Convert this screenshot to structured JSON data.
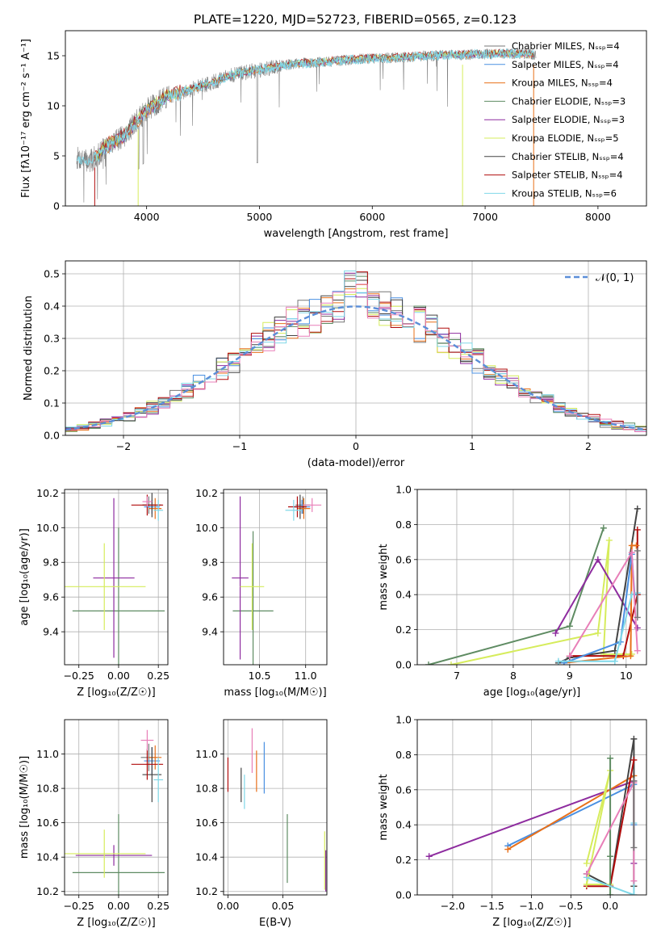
{
  "figure": {
    "title": "PLATE=1220, MJD=52723, FIBERID=0565, z=0.123"
  },
  "colors": {
    "chabrier_miles": "#777777",
    "salpeter_miles": "#4a90e2",
    "kroupa_miles": "#e8701a",
    "chabrier_elodie": "#5e8b62",
    "salpeter_elodie": "#8e2c9f",
    "kroupa_elodie": "#d6ec5c",
    "chabrier_stelib": "#444444",
    "salpeter_stelib": "#b00c0c",
    "kroupa_stelib": "#80d8e8",
    "pink": "#e87fb8",
    "normal_fit": "#5b8ed8"
  },
  "chart_data": [
    {
      "id": "spectrum",
      "type": "line",
      "xlabel": "wavelength [Angstrom, rest frame]",
      "ylabel": "Flux [fλ10⁻¹⁷ erg cm⁻² s⁻¹ A⁻¹]",
      "xlim": [
        3280,
        8430
      ],
      "ylim": [
        0,
        17.5
      ],
      "xticks": [
        4000,
        5000,
        6000,
        7000,
        8000
      ],
      "yticks": [
        0,
        5,
        10,
        15
      ],
      "legend_position": "top-right",
      "legend": [
        "Chabrier MILES, Nₛₛₚ=4",
        "Salpeter MILES, Nₛₛₚ=4",
        "Kroupa MILES, Nₛₛₚ=4",
        "Chabrier ELODIE, Nₛₛₚ=3",
        "Salpeter ELODIE, Nₛₛₚ=3",
        "Kroupa ELODIE, Nₛₛₚ=5",
        "Chabrier STELIB, Nₛₛₚ=4",
        "Salpeter STELIB, Nₛₛₚ=4",
        "Kroupa STELIB, Nₛₛₚ=6"
      ],
      "legend_colors": [
        "chabrier_miles",
        "salpeter_miles",
        "kroupa_miles",
        "chabrier_elodie",
        "salpeter_elodie",
        "kroupa_elodie",
        "chabrier_stelib",
        "salpeter_stelib",
        "kroupa_stelib"
      ],
      "continuum_wavelength": [
        3380,
        3500,
        3650,
        3800,
        4000,
        4200,
        4500,
        4800,
        5000,
        5300,
        5600,
        5900,
        6200,
        6500,
        6800,
        7100,
        7300,
        7450
      ],
      "continuum_flux": [
        4.8,
        4.4,
        6.0,
        7.0,
        9.6,
        11.0,
        12.0,
        13.2,
        13.6,
        14.2,
        14.4,
        14.7,
        14.8,
        15.0,
        15.1,
        15.2,
        15.2,
        15.1
      ],
      "model_start": 3540,
      "model_end": 7430
    },
    {
      "id": "residual_hist",
      "type": "histogram",
      "xlabel": "(data-model)/error",
      "ylabel": "Normed distribution",
      "xlim": [
        -2.5,
        2.5
      ],
      "ylim": [
        0,
        0.54
      ],
      "xticks": [
        -2,
        -1,
        0,
        1,
        2
      ],
      "yticks": [
        0.0,
        0.1,
        0.2,
        0.3,
        0.4,
        0.5
      ],
      "legend_position": "top-right",
      "legend": [
        "𝒩(0, 1)"
      ],
      "bin_width": 0.1,
      "series_colors": [
        "chabrier_miles",
        "salpeter_miles",
        "kroupa_miles",
        "chabrier_elodie",
        "salpeter_elodie",
        "kroupa_elodie",
        "chabrier_stelib",
        "salpeter_stelib",
        "kroupa_stelib",
        "pink"
      ]
    },
    {
      "id": "age_vs_z",
      "type": "errorbar",
      "xlabel": "Z [log₁₀(Z/Z☉)]",
      "ylabel": "age  [log₁₀(age/yr)]",
      "xlim": [
        -0.34,
        0.31
      ],
      "ylim": [
        9.21,
        10.22
      ],
      "xticks": [
        -0.25,
        0.0,
        0.25
      ],
      "yticks": [
        9.4,
        9.6,
        9.8,
        10.0,
        10.2
      ],
      "points": [
        {
          "x": 0.19,
          "y": 10.13,
          "xerr": 0.04,
          "yerr": 0.05,
          "c": "chabrier_miles"
        },
        {
          "x": 0.21,
          "y": 10.12,
          "xerr": 0.05,
          "yerr": 0.04,
          "c": "salpeter_miles"
        },
        {
          "x": 0.23,
          "y": 10.11,
          "xerr": 0.04,
          "yerr": 0.06,
          "c": "kroupa_miles"
        },
        {
          "x": 0.0,
          "y": 9.52,
          "xerr": 0.29,
          "yerr": 0.48,
          "c": "chabrier_elodie"
        },
        {
          "x": -0.03,
          "y": 9.71,
          "xerr": 0.13,
          "yerr": 0.46,
          "c": "salpeter_elodie"
        },
        {
          "x": -0.09,
          "y": 9.66,
          "xerr": 0.26,
          "yerr": 0.25,
          "c": "kroupa_elodie"
        },
        {
          "x": 0.21,
          "y": 10.13,
          "xerr": 0.06,
          "yerr": 0.07,
          "c": "chabrier_stelib"
        },
        {
          "x": 0.18,
          "y": 10.13,
          "xerr": 0.1,
          "yerr": 0.06,
          "c": "salpeter_stelib"
        },
        {
          "x": 0.25,
          "y": 10.1,
          "xerr": 0.03,
          "yerr": 0.06,
          "c": "kroupa_stelib"
        },
        {
          "x": 0.18,
          "y": 10.15,
          "xerr": 0.03,
          "yerr": 0.03,
          "c": "pink"
        }
      ]
    },
    {
      "id": "age_vs_mass",
      "type": "errorbar",
      "xlabel": "mass [log₁₀(M/M☉)]",
      "ylabel": "",
      "xlim": [
        10.11,
        11.23
      ],
      "ylim": [
        9.21,
        10.22
      ],
      "xticks": [
        10.5,
        11.0
      ],
      "yticks": [
        9.4,
        9.6,
        9.8,
        10.0,
        10.2
      ],
      "points": [
        {
          "x": 10.97,
          "y": 10.13,
          "xerr": 0.08,
          "yerr": 0.05,
          "c": "chabrier_miles"
        },
        {
          "x": 10.96,
          "y": 10.12,
          "xerr": 0.09,
          "yerr": 0.04,
          "c": "salpeter_miles"
        },
        {
          "x": 10.98,
          "y": 10.11,
          "xerr": 0.07,
          "yerr": 0.06,
          "c": "kroupa_miles"
        },
        {
          "x": 10.43,
          "y": 9.52,
          "xerr": 0.22,
          "yerr": 0.46,
          "c": "chabrier_elodie"
        },
        {
          "x": 10.29,
          "y": 9.71,
          "xerr": 0.09,
          "yerr": 0.47,
          "c": "salpeter_elodie"
        },
        {
          "x": 10.42,
          "y": 9.66,
          "xerr": 0.13,
          "yerr": 0.25,
          "c": "kroupa_elodie"
        },
        {
          "x": 10.94,
          "y": 10.12,
          "xerr": 0.07,
          "yerr": 0.07,
          "c": "chabrier_stelib"
        },
        {
          "x": 10.91,
          "y": 10.12,
          "xerr": 0.1,
          "yerr": 0.06,
          "c": "salpeter_stelib"
        },
        {
          "x": 10.87,
          "y": 10.1,
          "xerr": 0.09,
          "yerr": 0.06,
          "c": "kroupa_stelib"
        },
        {
          "x": 11.07,
          "y": 10.13,
          "xerr": 0.1,
          "yerr": 0.04,
          "c": "pink"
        }
      ]
    },
    {
      "id": "weight_vs_age",
      "type": "line",
      "xlabel": "age  [log₁₀(age/yr)]",
      "ylabel": "mass weight",
      "xlim": [
        6.3,
        10.36
      ],
      "ylim": [
        0,
        1.0
      ],
      "xticks": [
        7,
        8,
        9,
        10
      ],
      "yticks": [
        0.0,
        0.2,
        0.4,
        0.6,
        0.8,
        1.0
      ],
      "series": [
        {
          "c": "chabrier_elodie",
          "x": [
            6.5,
            9.0,
            9.6
          ],
          "y": [
            0.0,
            0.22,
            0.78
          ]
        },
        {
          "c": "kroupa_elodie",
          "x": [
            6.9,
            9.5,
            9.7,
            9.6,
            10.1
          ],
          "y": [
            0.0,
            0.18,
            0.71,
            0.06,
            0.06
          ]
        },
        {
          "c": "salpeter_elodie",
          "x": [
            8.75,
            9.5,
            10.2
          ],
          "y": [
            0.18,
            0.6,
            0.21
          ]
        },
        {
          "c": "chabrier_stelib",
          "x": [
            8.8,
            9.0,
            9.8,
            10.2
          ],
          "y": [
            0.01,
            0.04,
            0.08,
            0.89
          ]
        },
        {
          "c": "salpeter_stelib",
          "x": [
            9.0,
            9.95,
            10.2,
            10.2
          ],
          "y": [
            0.05,
            0.05,
            0.4,
            0.77
          ]
        },
        {
          "c": "kroupa_miles",
          "x": [
            8.9,
            10.08,
            10.1,
            10.18
          ],
          "y": [
            0.01,
            0.05,
            0.68,
            0.68
          ]
        },
        {
          "c": "salpeter_miles",
          "x": [
            8.9,
            9.9,
            10.1,
            10.15
          ],
          "y": [
            0.01,
            0.13,
            0.63,
            0.4
          ]
        },
        {
          "c": "kroupa_stelib",
          "x": [
            8.8,
            9.8,
            10.1,
            10.2
          ],
          "y": [
            0.02,
            0.02,
            0.4,
            0.41
          ]
        },
        {
          "c": "pink",
          "x": [
            9.0,
            10.1,
            10.2
          ],
          "y": [
            0.05,
            0.64,
            0.08
          ]
        },
        {
          "c": "chabrier_miles",
          "x": [
            10.2,
            10.2
          ],
          "y": [
            0.27,
            0.65
          ]
        }
      ]
    },
    {
      "id": "mass_vs_z",
      "type": "errorbar",
      "xlabel": "Z [log₁₀(Z/Z☉)]",
      "ylabel": "mass [log₁₀(M/M☉)]",
      "xlim": [
        -0.34,
        0.31
      ],
      "ylim": [
        10.18,
        11.2
      ],
      "xticks": [
        -0.25,
        0.0,
        0.25
      ],
      "yticks": [
        10.2,
        10.4,
        10.6,
        10.8,
        11.0
      ],
      "points": [
        {
          "x": 0.19,
          "y": 10.98,
          "xerr": 0.05,
          "yerr": 0.08,
          "c": "chabrier_miles"
        },
        {
          "x": 0.21,
          "y": 10.96,
          "xerr": 0.05,
          "yerr": 0.08,
          "c": "salpeter_miles"
        },
        {
          "x": 0.23,
          "y": 10.98,
          "xerr": 0.04,
          "yerr": 0.07,
          "c": "kroupa_miles"
        },
        {
          "x": 0.0,
          "y": 10.31,
          "xerr": 0.29,
          "yerr": 0.34,
          "c": "chabrier_elodie"
        },
        {
          "x": -0.03,
          "y": 10.41,
          "xerr": 0.24,
          "yerr": 0.06,
          "c": "salpeter_elodie"
        },
        {
          "x": -0.09,
          "y": 10.42,
          "xerr": 0.26,
          "yerr": 0.14,
          "c": "kroupa_elodie"
        },
        {
          "x": 0.21,
          "y": 10.88,
          "xerr": 0.06,
          "yerr": 0.16,
          "c": "chabrier_stelib"
        },
        {
          "x": 0.18,
          "y": 10.94,
          "xerr": 0.1,
          "yerr": 0.09,
          "c": "salpeter_stelib"
        },
        {
          "x": 0.25,
          "y": 10.85,
          "xerr": 0.03,
          "yerr": 0.13,
          "c": "kroupa_stelib"
        },
        {
          "x": 0.18,
          "y": 11.08,
          "xerr": 0.04,
          "yerr": 0.06,
          "c": "pink"
        }
      ]
    },
    {
      "id": "mass_vs_ebv",
      "type": "errorbar",
      "xlabel": "E(B-V)",
      "ylabel": "",
      "xlim": [
        -0.004,
        0.09
      ],
      "ylim": [
        10.18,
        11.2
      ],
      "xticks": [
        0.0,
        0.05
      ],
      "yticks": [
        10.2,
        10.4,
        10.6,
        10.8,
        11.0
      ],
      "points": [
        {
          "x": 0.0,
          "y": 10.88,
          "xerr": 0,
          "yerr": 0.1,
          "c": "salpeter_stelib"
        },
        {
          "x": 0.012,
          "y": 10.82,
          "xerr": 0,
          "yerr": 0.1,
          "c": "chabrier_stelib"
        },
        {
          "x": 0.015,
          "y": 10.78,
          "xerr": 0,
          "yerr": 0.1,
          "c": "kroupa_stelib"
        },
        {
          "x": 0.022,
          "y": 11.02,
          "xerr": 0,
          "yerr": 0.13,
          "c": "pink"
        },
        {
          "x": 0.026,
          "y": 10.9,
          "xerr": 0,
          "yerr": 0.12,
          "c": "kroupa_miles"
        },
        {
          "x": 0.033,
          "y": 10.92,
          "xerr": 0,
          "yerr": 0.15,
          "c": "salpeter_miles"
        },
        {
          "x": 0.054,
          "y": 10.45,
          "xerr": 0,
          "yerr": 0.2,
          "c": "chabrier_elodie"
        },
        {
          "x": 0.088,
          "y": 10.38,
          "xerr": 0,
          "yerr": 0.17,
          "c": "kroupa_elodie"
        },
        {
          "x": 0.089,
          "y": 10.32,
          "xerr": 0,
          "yerr": 0.12,
          "c": "salpeter_elodie"
        }
      ]
    },
    {
      "id": "weight_vs_z",
      "type": "line",
      "xlabel": "Z [log₁₀(Z/Z☉)]",
      "ylabel": "mass weight",
      "xlim": [
        -2.45,
        0.46
      ],
      "ylim": [
        0,
        1.0
      ],
      "xticks": [
        -2.0,
        -1.5,
        -1.0,
        -0.5,
        0.0
      ],
      "yticks": [
        0.0,
        0.2,
        0.4,
        0.6,
        0.8,
        1.0
      ],
      "series": [
        {
          "c": "salpeter_elodie",
          "x": [
            -2.3,
            0.3,
            0.3
          ],
          "y": [
            0.22,
            0.65,
            0.18
          ]
        },
        {
          "c": "salpeter_miles",
          "x": [
            -1.3,
            0.3,
            0.3
          ],
          "y": [
            0.28,
            0.63,
            0.4
          ]
        },
        {
          "c": "kroupa_miles",
          "x": [
            -1.3,
            0.3,
            0.3
          ],
          "y": [
            0.26,
            0.68,
            0.05
          ]
        },
        {
          "c": "chabrier_stelib",
          "x": [
            -0.3,
            0.0,
            0.3,
            0.3
          ],
          "y": [
            0.12,
            0.05,
            0.89,
            0.05
          ]
        },
        {
          "c": "salpeter_stelib",
          "x": [
            -0.3,
            0.0,
            0.3
          ],
          "y": [
            0.05,
            0.05,
            0.77
          ]
        },
        {
          "c": "kroupa_elodie",
          "x": [
            -0.3,
            0.0,
            -0.3,
            0.0
          ],
          "y": [
            0.18,
            0.71,
            0.06,
            0.06
          ]
        },
        {
          "c": "chabrier_elodie",
          "x": [
            0.0,
            0.0,
            0.0
          ],
          "y": [
            0.0,
            0.22,
            0.78
          ]
        },
        {
          "c": "kroupa_stelib",
          "x": [
            -0.3,
            0.3,
            0.3
          ],
          "y": [
            0.1,
            0.0,
            0.41
          ]
        },
        {
          "c": "pink",
          "x": [
            -0.3,
            0.3,
            0.3
          ],
          "y": [
            0.12,
            0.64,
            0.08
          ]
        },
        {
          "c": "chabrier_miles",
          "x": [
            0.3,
            0.3
          ],
          "y": [
            0.27,
            0.65
          ]
        }
      ]
    }
  ]
}
